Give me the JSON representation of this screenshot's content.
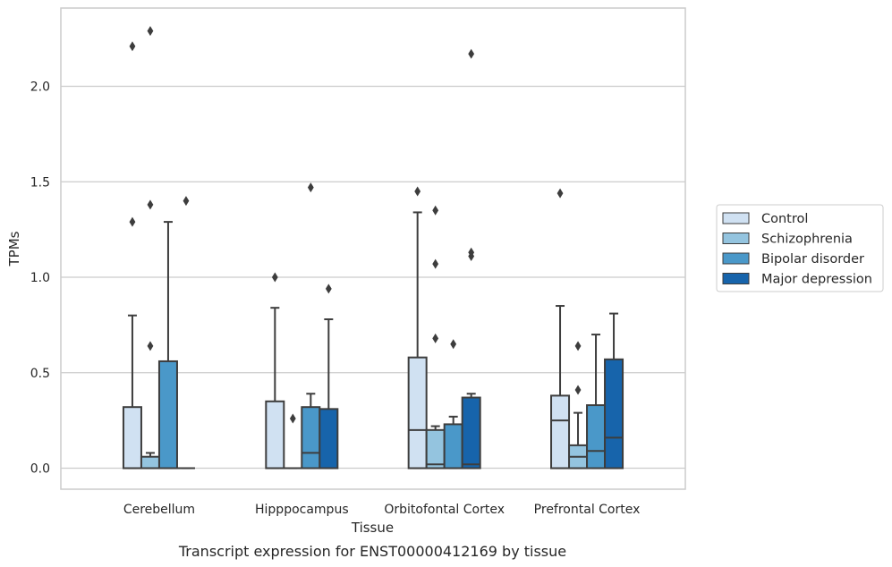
{
  "chart_data": {
    "type": "box",
    "title": "Transcript expression for ENST00000412169 by tissue",
    "xlabel": "Tissue",
    "ylabel": "TPMs",
    "categories": [
      "Cerebellum",
      "Hipppocampus",
      "Orbitofontal Cortex",
      "Prefrontal Cortex"
    ],
    "ylim": [
      -0.11,
      2.41
    ],
    "yticks": [
      0.0,
      0.5,
      1.0,
      1.5,
      2.0
    ],
    "ytick_labels": [
      "0.0",
      "0.5",
      "1.0",
      "1.5",
      "2.0"
    ],
    "grid": "horizontal",
    "legend_position": "right",
    "series": [
      {
        "name": "Control",
        "color": "#d0e1f2",
        "boxes": [
          {
            "q1": 0.0,
            "median": 0.0,
            "q3": 0.32,
            "whisker_low": 0.0,
            "whisker_high": 0.8,
            "outliers": [
              1.29,
              2.21
            ]
          },
          {
            "q1": 0.0,
            "median": 0.0,
            "q3": 0.35,
            "whisker_low": 0.0,
            "whisker_high": 0.84,
            "outliers": [
              1.0
            ]
          },
          {
            "q1": 0.0,
            "median": 0.2,
            "q3": 0.58,
            "whisker_low": 0.0,
            "whisker_high": 1.34,
            "outliers": [
              1.45
            ]
          },
          {
            "q1": 0.0,
            "median": 0.25,
            "q3": 0.38,
            "whisker_low": 0.0,
            "whisker_high": 0.85,
            "outliers": [
              1.44
            ]
          }
        ]
      },
      {
        "name": "Schizophrenia",
        "color": "#94c4df",
        "boxes": [
          {
            "q1": 0.0,
            "median": 0.0,
            "q3": 0.06,
            "whisker_low": 0.0,
            "whisker_high": 0.08,
            "outliers": [
              0.64,
              1.38,
              2.29
            ]
          },
          {
            "q1": 0.0,
            "median": 0.0,
            "q3": 0.0,
            "whisker_low": 0.0,
            "whisker_high": 0.0,
            "outliers": [
              0.26
            ]
          },
          {
            "q1": 0.0,
            "median": 0.02,
            "q3": 0.2,
            "whisker_low": 0.0,
            "whisker_high": 0.22,
            "outliers": [
              0.68,
              1.07,
              1.35
            ]
          },
          {
            "q1": 0.0,
            "median": 0.06,
            "q3": 0.12,
            "whisker_low": 0.0,
            "whisker_high": 0.29,
            "outliers": [
              0.41,
              0.64
            ]
          }
        ]
      },
      {
        "name": "Bipolar disorder",
        "color": "#4a98c9",
        "boxes": [
          {
            "q1": 0.0,
            "median": 0.0,
            "q3": 0.56,
            "whisker_low": 0.0,
            "whisker_high": 1.29,
            "outliers": []
          },
          {
            "q1": 0.0,
            "median": 0.08,
            "q3": 0.32,
            "whisker_low": 0.0,
            "whisker_high": 0.39,
            "outliers": [
              1.47
            ]
          },
          {
            "q1": 0.0,
            "median": 0.0,
            "q3": 0.23,
            "whisker_low": 0.0,
            "whisker_high": 0.27,
            "outliers": [
              0.65
            ]
          },
          {
            "q1": 0.0,
            "median": 0.09,
            "q3": 0.33,
            "whisker_low": 0.0,
            "whisker_high": 0.7,
            "outliers": []
          }
        ]
      },
      {
        "name": "Major depression",
        "color": "#1764ab",
        "boxes": [
          {
            "q1": 0.0,
            "median": 0.0,
            "q3": 0.0,
            "whisker_low": 0.0,
            "whisker_high": 0.0,
            "outliers": [
              1.4
            ]
          },
          {
            "q1": 0.0,
            "median": 0.0,
            "q3": 0.31,
            "whisker_low": 0.0,
            "whisker_high": 0.78,
            "outliers": [
              0.94
            ]
          },
          {
            "q1": 0.0,
            "median": 0.02,
            "q3": 0.37,
            "whisker_low": 0.0,
            "whisker_high": 0.39,
            "outliers": [
              1.11,
              1.13,
              2.17
            ]
          },
          {
            "q1": 0.0,
            "median": 0.16,
            "q3": 0.57,
            "whisker_low": 0.0,
            "whisker_high": 0.81,
            "outliers": []
          }
        ]
      }
    ]
  }
}
